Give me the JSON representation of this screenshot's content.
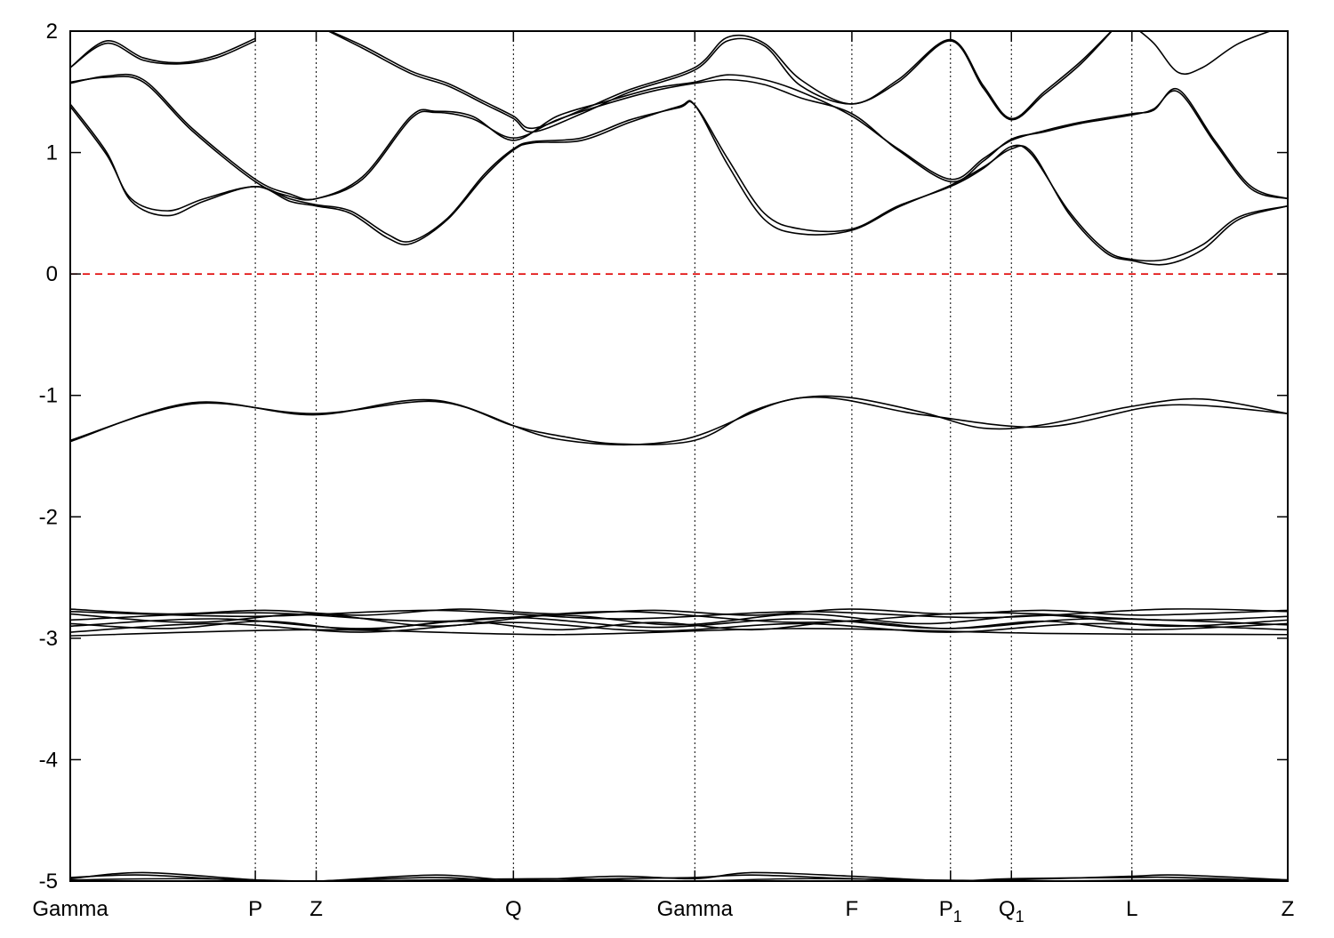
{
  "chart_data": {
    "type": "line",
    "title": "",
    "xlabel": "",
    "ylabel": "",
    "ylim": [
      -5,
      2
    ],
    "yticks": [
      2,
      1,
      0,
      -1,
      -2,
      -3,
      -4,
      -5
    ],
    "fermi_level": 0,
    "colors": {
      "bands": "#000000",
      "fermi": "#e00000",
      "kpoint_lines": "#000000"
    },
    "grid": false,
    "kpoints": [
      {
        "label": "Gamma",
        "sub": "",
        "x": 0.0
      },
      {
        "label": "P",
        "sub": "",
        "x": 1.52
      },
      {
        "label": "Z",
        "sub": "",
        "x": 2.02
      },
      {
        "label": "Q",
        "sub": "",
        "x": 3.64
      },
      {
        "label": "Gamma",
        "sub": "",
        "x": 5.13
      },
      {
        "label": "F",
        "sub": "",
        "x": 6.42
      },
      {
        "label": "P",
        "sub": "1",
        "x": 7.23
      },
      {
        "label": "Q",
        "sub": "1",
        "x": 7.73
      },
      {
        "label": "L",
        "sub": "",
        "x": 8.72
      },
      {
        "label": "Z",
        "sub": "",
        "x": 10.0
      }
    ],
    "series": [
      {
        "x": [
          0,
          0.3,
          0.6,
          0.9,
          1.2,
          1.52
        ],
        "values": [
          1.7,
          1.92,
          1.78,
          1.74,
          1.8,
          1.94
        ]
      },
      {
        "x": [
          0,
          0.3,
          0.6,
          0.9,
          1.2,
          1.52
        ],
        "values": [
          1.7,
          1.9,
          1.76,
          1.73,
          1.78,
          1.92
        ]
      },
      {
        "x": [
          0,
          0.3,
          0.6,
          1.0,
          1.52,
          1.8,
          2.02,
          2.4,
          2.8,
          3.0,
          3.3,
          3.64,
          4.0,
          4.4,
          4.8,
          5.13,
          5.4,
          5.7,
          6.0,
          6.42,
          6.8,
          7.23,
          7.5,
          7.73,
          8.0,
          8.3,
          8.72,
          8.9,
          9.1,
          9.4,
          9.7,
          10.0
        ],
        "values": [
          1.57,
          1.63,
          1.6,
          1.2,
          0.78,
          0.66,
          0.62,
          0.8,
          1.3,
          1.34,
          1.3,
          1.1,
          1.3,
          1.42,
          1.53,
          1.58,
          1.64,
          1.6,
          1.5,
          1.3,
          1.03,
          0.78,
          0.95,
          1.1,
          1.18,
          1.25,
          1.32,
          1.35,
          1.52,
          1.1,
          0.72,
          0.62
        ]
      },
      {
        "x": [
          0,
          0.3,
          0.6,
          1.0,
          1.52,
          1.8,
          2.02,
          2.4,
          2.8,
          3.0,
          3.3,
          3.64,
          4.0,
          4.4,
          4.8,
          5.13,
          5.4,
          5.7,
          6.0,
          6.42,
          6.8,
          7.23,
          7.5,
          7.73,
          8.0,
          8.3,
          8.72,
          8.9,
          9.1,
          9.4,
          9.7,
          10.0
        ],
        "values": [
          1.58,
          1.62,
          1.58,
          1.18,
          0.76,
          0.64,
          0.62,
          0.78,
          1.28,
          1.33,
          1.28,
          1.12,
          1.27,
          1.4,
          1.51,
          1.57,
          1.6,
          1.56,
          1.45,
          1.32,
          1.02,
          0.76,
          0.93,
          1.11,
          1.17,
          1.24,
          1.31,
          1.36,
          1.5,
          1.08,
          0.7,
          0.62
        ]
      },
      {
        "x": [
          0,
          0.3,
          0.5,
          0.8,
          1.1,
          1.52,
          1.8,
          2.02,
          2.3,
          2.6,
          2.8,
          3.1,
          3.4,
          3.64,
          3.8,
          4.2,
          4.6,
          5.0,
          5.13,
          5.4,
          5.7,
          6.0,
          6.42,
          6.8,
          7.23,
          7.5,
          7.73,
          7.9,
          8.2,
          8.5,
          8.72,
          9.0,
          9.3,
          9.6,
          10.0
        ],
        "values": [
          1.4,
          1.0,
          0.6,
          0.48,
          0.6,
          0.72,
          0.6,
          0.56,
          0.5,
          0.3,
          0.25,
          0.45,
          0.8,
          1.02,
          1.08,
          1.1,
          1.25,
          1.38,
          1.39,
          0.9,
          0.45,
          0.33,
          0.36,
          0.55,
          0.73,
          0.88,
          1.03,
          1.0,
          0.5,
          0.18,
          0.11,
          0.08,
          0.2,
          0.45,
          0.56
        ]
      },
      {
        "x": [
          0,
          0.3,
          0.5,
          0.8,
          1.1,
          1.52,
          1.8,
          2.02,
          2.3,
          2.6,
          2.8,
          3.1,
          3.4,
          3.64,
          3.8,
          4.2,
          4.6,
          5.0,
          5.13,
          5.4,
          5.7,
          6.0,
          6.42,
          6.8,
          7.23,
          7.5,
          7.73,
          7.9,
          8.2,
          8.5,
          8.72,
          9.0,
          9.3,
          9.6,
          10.0
        ],
        "values": [
          1.38,
          0.98,
          0.62,
          0.52,
          0.62,
          0.72,
          0.62,
          0.57,
          0.52,
          0.33,
          0.27,
          0.46,
          0.82,
          1.03,
          1.09,
          1.12,
          1.27,
          1.37,
          1.39,
          0.95,
          0.5,
          0.37,
          0.37,
          0.56,
          0.72,
          0.87,
          1.05,
          0.98,
          0.52,
          0.2,
          0.12,
          0.12,
          0.24,
          0.47,
          0.56
        ]
      },
      {
        "x": [
          2.02,
          2.4,
          2.8,
          3.1,
          3.4,
          3.64,
          3.8,
          4.2,
          4.6,
          5.13,
          5.4,
          5.7,
          6.0,
          6.42,
          6.8,
          7.23,
          7.5,
          7.73,
          8.0,
          8.3,
          8.6
        ],
        "values": [
          2.05,
          1.88,
          1.67,
          1.57,
          1.42,
          1.3,
          1.2,
          1.35,
          1.52,
          1.7,
          1.95,
          1.9,
          1.6,
          1.4,
          1.6,
          1.93,
          1.55,
          1.28,
          1.5,
          1.75,
          2.05
        ]
      },
      {
        "x": [
          2.02,
          2.4,
          2.8,
          3.1,
          3.4,
          3.64,
          3.8,
          4.2,
          4.6,
          5.13,
          5.4,
          5.7,
          6.0,
          6.42,
          6.8,
          7.23,
          7.5,
          7.73,
          8.0,
          8.3,
          8.6
        ],
        "values": [
          2.05,
          1.86,
          1.65,
          1.55,
          1.4,
          1.28,
          1.17,
          1.32,
          1.5,
          1.68,
          1.92,
          1.88,
          1.55,
          1.4,
          1.58,
          1.92,
          1.53,
          1.27,
          1.48,
          1.73,
          2.05
        ]
      },
      {
        "x": [
          8.72,
          8.9,
          9.1,
          9.3,
          9.6,
          10.0
        ],
        "values": [
          2.05,
          1.9,
          1.66,
          1.7,
          1.9,
          2.05
        ]
      },
      {
        "x": [
          0,
          1.0,
          2.0,
          3.0,
          4.0,
          5.0,
          6.0,
          7.0,
          8.0,
          9.0,
          10.0
        ],
        "values": [
          -1.38,
          -1.06,
          -1.16,
          -1.04,
          -1.36,
          -1.37,
          -1.02,
          -1.16,
          -1.26,
          -1.08,
          -1.15
        ]
      },
      {
        "x": [
          0,
          1.0,
          2.0,
          3.0,
          3.64,
          4.0,
          4.5,
          5.13,
          5.6,
          6.0,
          6.42,
          7.0,
          7.5,
          8.0,
          8.72,
          9.3,
          10.0
        ],
        "values": [
          -1.37,
          -1.07,
          -1.15,
          -1.05,
          -1.25,
          -1.33,
          -1.4,
          -1.37,
          -1.13,
          -1.02,
          -1.02,
          -1.14,
          -1.27,
          -1.24,
          -1.09,
          -1.03,
          -1.15
        ]
      },
      {
        "x": [
          0,
          1.5,
          3.0,
          4.5,
          6.0,
          7.5,
          9.0,
          10.0
        ],
        "values": [
          -2.78,
          -2.82,
          -2.77,
          -2.84,
          -2.78,
          -2.83,
          -2.76,
          -2.78
        ]
      },
      {
        "x": [
          0,
          1.5,
          3.0,
          4.5,
          6.0,
          7.5,
          9.0,
          10.0
        ],
        "values": [
          -2.85,
          -2.79,
          -2.86,
          -2.78,
          -2.87,
          -2.79,
          -2.85,
          -2.82
        ]
      },
      {
        "x": [
          0,
          1.2,
          2.4,
          3.6,
          4.8,
          6.0,
          7.2,
          8.4,
          10.0
        ],
        "values": [
          -2.9,
          -2.84,
          -2.92,
          -2.83,
          -2.91,
          -2.84,
          -2.92,
          -2.84,
          -2.89
        ]
      },
      {
        "x": [
          0,
          1.2,
          2.4,
          3.6,
          4.8,
          6.0,
          7.2,
          8.4,
          10.0
        ],
        "values": [
          -2.95,
          -2.88,
          -2.95,
          -2.87,
          -2.94,
          -2.88,
          -2.95,
          -2.88,
          -2.93
        ]
      },
      {
        "x": [
          0,
          2.0,
          4.0,
          6.0,
          8.0,
          10.0
        ],
        "values": [
          -2.98,
          -2.93,
          -2.97,
          -2.92,
          -2.96,
          -2.97
        ]
      },
      {
        "x": [
          0,
          1.0,
          2.0,
          3.0,
          4.0,
          5.0,
          6.0,
          7.0,
          8.0,
          9.0,
          10.0
        ],
        "values": [
          -2.8,
          -2.87,
          -2.8,
          -2.9,
          -2.81,
          -2.89,
          -2.8,
          -2.88,
          -2.81,
          -2.9,
          -2.85
        ]
      },
      {
        "x": [
          0,
          0.8,
          1.6,
          2.4,
          3.2,
          4.0,
          4.8,
          5.6,
          6.4,
          7.2,
          8.0,
          8.8,
          10.0
        ],
        "values": [
          -2.88,
          -2.92,
          -2.86,
          -2.93,
          -2.86,
          -2.93,
          -2.87,
          -2.93,
          -2.86,
          -2.92,
          -2.86,
          -2.93,
          -2.88
        ]
      },
      {
        "x": [
          0,
          0.8,
          1.6,
          2.4,
          3.2,
          4.0,
          4.8,
          5.6,
          6.4,
          7.2,
          8.0,
          8.8,
          10.0
        ],
        "values": [
          -2.76,
          -2.8,
          -2.77,
          -2.81,
          -2.76,
          -2.8,
          -2.77,
          -2.81,
          -2.76,
          -2.8,
          -2.77,
          -2.81,
          -2.77
        ]
      },
      {
        "x": [
          0,
          0.6,
          1.52,
          2.02,
          3.0,
          3.64,
          4.5,
          5.13,
          5.6,
          6.42,
          7.23,
          7.73,
          8.72,
          9.1,
          10.0
        ],
        "values": [
          -4.98,
          -4.93,
          -4.99,
          -5.0,
          -4.95,
          -4.99,
          -4.96,
          -4.98,
          -4.93,
          -4.96,
          -5.0,
          -4.99,
          -4.96,
          -4.95,
          -4.99
        ]
      },
      {
        "x": [
          0,
          0.6,
          1.52,
          2.02,
          3.0,
          3.64,
          4.5,
          5.13,
          5.6,
          6.42,
          7.23,
          7.73,
          8.72,
          9.1,
          10.0
        ],
        "values": [
          -4.97,
          -4.95,
          -5.0,
          -5.0,
          -4.97,
          -5.0,
          -4.98,
          -4.97,
          -4.95,
          -4.98,
          -5.0,
          -4.98,
          -4.97,
          -4.97,
          -5.0
        ]
      },
      {
        "x": [
          0,
          1.0,
          2.0,
          3.0,
          4.0,
          5.0,
          6.0,
          7.0,
          8.0,
          9.0,
          10.0
        ],
        "values": [
          -4.99,
          -4.98,
          -5.0,
          -4.99,
          -4.98,
          -5.0,
          -4.98,
          -4.99,
          -5.0,
          -4.99,
          -4.99
        ]
      }
    ]
  }
}
